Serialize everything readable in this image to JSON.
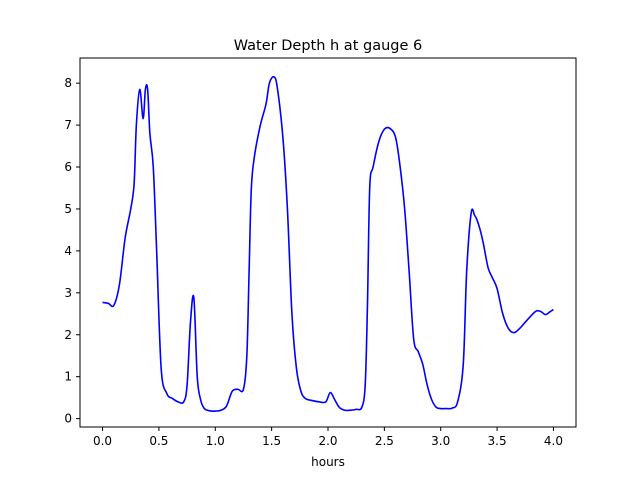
{
  "chart_data": {
    "type": "line",
    "title": "Water Depth h at gauge 6",
    "xlabel": "hours",
    "ylabel": "",
    "xlim": [
      -0.2,
      4.2
    ],
    "ylim": [
      -0.2,
      8.6
    ],
    "xticks": [
      0.0,
      0.5,
      1.0,
      1.5,
      2.0,
      2.5,
      3.0,
      3.5,
      4.0
    ],
    "xtick_labels": [
      "0.0",
      "0.5",
      "1.0",
      "1.5",
      "2.0",
      "2.5",
      "3.0",
      "3.5",
      "4.0"
    ],
    "yticks": [
      0,
      1,
      2,
      3,
      4,
      5,
      6,
      7,
      8
    ],
    "ytick_labels": [
      "0",
      "1",
      "2",
      "3",
      "4",
      "5",
      "6",
      "7",
      "8"
    ],
    "grid": false,
    "series": [
      {
        "color": "#0000ff",
        "x": [
          0.0,
          0.05,
          0.1,
          0.15,
          0.2,
          0.25,
          0.28,
          0.3,
          0.33,
          0.36,
          0.38,
          0.4,
          0.42,
          0.45,
          0.48,
          0.52,
          0.57,
          0.62,
          0.67,
          0.72,
          0.75,
          0.78,
          0.81,
          0.84,
          0.87,
          0.9,
          0.93,
          0.97,
          1.0,
          1.05,
          1.1,
          1.15,
          1.2,
          1.25,
          1.28,
          1.3,
          1.32,
          1.35,
          1.4,
          1.45,
          1.48,
          1.52,
          1.55,
          1.6,
          1.64,
          1.68,
          1.72,
          1.76,
          1.8,
          1.86,
          1.92,
          1.98,
          2.02,
          2.06,
          2.1,
          2.15,
          2.2,
          2.25,
          2.3,
          2.33,
          2.35,
          2.37,
          2.4,
          2.45,
          2.5,
          2.55,
          2.6,
          2.64,
          2.68,
          2.72,
          2.76,
          2.8,
          2.84,
          2.88,
          2.92,
          2.96,
          3.0,
          3.05,
          3.1,
          3.15,
          3.2,
          3.23,
          3.27,
          3.3,
          3.32,
          3.35,
          3.38,
          3.42,
          3.46,
          3.5,
          3.55,
          3.6,
          3.65,
          3.7,
          3.75,
          3.8,
          3.85,
          3.89,
          3.93,
          3.97,
          4.0
        ],
        "y": [
          2.77,
          2.75,
          2.7,
          3.2,
          4.3,
          5.0,
          5.6,
          7.0,
          7.85,
          7.15,
          7.85,
          7.85,
          6.8,
          6.0,
          4.0,
          1.2,
          0.6,
          0.48,
          0.4,
          0.4,
          0.8,
          2.3,
          2.88,
          1.0,
          0.45,
          0.25,
          0.2,
          0.18,
          0.18,
          0.2,
          0.3,
          0.65,
          0.7,
          0.7,
          1.5,
          3.5,
          5.5,
          6.3,
          7.0,
          7.5,
          8.0,
          8.15,
          7.9,
          6.7,
          5.0,
          2.5,
          1.2,
          0.65,
          0.48,
          0.43,
          0.4,
          0.4,
          0.62,
          0.45,
          0.27,
          0.2,
          0.2,
          0.22,
          0.27,
          0.8,
          2.7,
          5.5,
          6.0,
          6.6,
          6.9,
          6.92,
          6.7,
          6.0,
          5.0,
          3.5,
          1.9,
          1.6,
          1.3,
          0.8,
          0.45,
          0.27,
          0.24,
          0.24,
          0.25,
          0.4,
          1.3,
          3.5,
          4.9,
          4.85,
          4.75,
          4.5,
          4.15,
          3.6,
          3.35,
          3.1,
          2.5,
          2.15,
          2.05,
          2.15,
          2.3,
          2.45,
          2.57,
          2.55,
          2.48,
          2.55,
          2.6
        ]
      }
    ]
  }
}
